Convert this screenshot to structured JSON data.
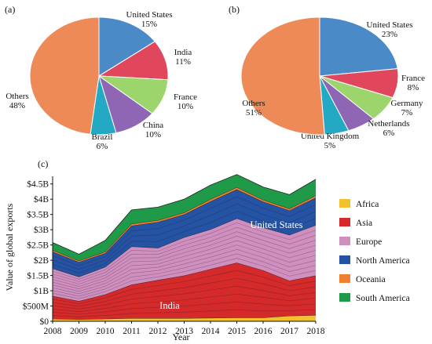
{
  "chart_data": [
    {
      "type": "pie",
      "panel_label": "(a)",
      "slices": [
        {
          "name": "United States",
          "value": 15,
          "value_label": "15%",
          "color": "#4a8ac6"
        },
        {
          "name": "India",
          "value": 11,
          "value_label": "11%",
          "color": "#e0475c"
        },
        {
          "name": "France",
          "value": 10,
          "value_label": "10%",
          "color": "#9bd56b"
        },
        {
          "name": "China",
          "value": 10,
          "value_label": "10%",
          "color": "#8e66b3"
        },
        {
          "name": "Brazil",
          "value": 6,
          "value_label": "6%",
          "color": "#23a9c4"
        },
        {
          "name": "Others",
          "value": 48,
          "value_label": "48%",
          "color": "#ee8a57"
        }
      ]
    },
    {
      "type": "pie",
      "panel_label": "(b)",
      "slices": [
        {
          "name": "United States",
          "value": 23,
          "value_label": "23%",
          "color": "#4a8ac6"
        },
        {
          "name": "France",
          "value": 8,
          "value_label": "8%",
          "color": "#e0475c"
        },
        {
          "name": "Germany",
          "value": 7,
          "value_label": "7%",
          "color": "#9bd56b"
        },
        {
          "name": "Netherlands",
          "value": 6,
          "value_label": "6%",
          "color": "#8e66b3"
        },
        {
          "name": "United Kingdom",
          "value": 5,
          "value_label": "5%",
          "color": "#23a9c4"
        },
        {
          "name": "Others",
          "value": 51,
          "value_label": "51%",
          "color": "#ee8a57"
        }
      ]
    },
    {
      "type": "area",
      "panel_label": "(c)",
      "stacked": true,
      "xlabel": "Year",
      "ylabel": "Value of global exports",
      "x": [
        2008,
        2009,
        2010,
        2011,
        2012,
        2013,
        2014,
        2015,
        2016,
        2017,
        2018
      ],
      "y_ticks": [
        {
          "value": 0,
          "label": "$0"
        },
        {
          "value": 0.5,
          "label": "$500M"
        },
        {
          "value": 1,
          "label": "$1B"
        },
        {
          "value": 1.5,
          "label": "$1.5B"
        },
        {
          "value": 2,
          "label": "$2B"
        },
        {
          "value": 2.5,
          "label": "$2.5B"
        },
        {
          "value": 3,
          "label": "$3B"
        },
        {
          "value": 3.5,
          "label": "$3.5B"
        },
        {
          "value": 4,
          "label": "$4B"
        },
        {
          "value": 4.5,
          "label": "$4.5B"
        }
      ],
      "ylim": [
        0,
        4.75
      ],
      "series": [
        {
          "name": "Africa",
          "color": "#f2c12e",
          "values": [
            0.08,
            0.06,
            0.08,
            0.1,
            0.1,
            0.1,
            0.11,
            0.12,
            0.12,
            0.18,
            0.2
          ]
        },
        {
          "name": "Asia",
          "color": "#d42a2a",
          "values": [
            0.75,
            0.6,
            0.8,
            1.1,
            1.25,
            1.4,
            1.6,
            1.8,
            1.55,
            1.15,
            1.3
          ]
        },
        {
          "name": "Europe",
          "color": "#cf8fbf",
          "values": [
            0.9,
            0.8,
            0.9,
            1.25,
            1.05,
            1.25,
            1.3,
            1.45,
            1.4,
            1.5,
            1.65
          ]
        },
        {
          "name": "North America",
          "color": "#2453a3",
          "values": [
            0.55,
            0.48,
            0.45,
            0.68,
            0.85,
            0.75,
            0.92,
            0.95,
            0.85,
            0.8,
            0.9
          ]
        },
        {
          "name": "Oceania",
          "color": "#f07f2f",
          "values": [
            0.05,
            0.04,
            0.05,
            0.06,
            0.06,
            0.06,
            0.07,
            0.07,
            0.06,
            0.06,
            0.07
          ]
        },
        {
          "name": "South America",
          "color": "#1f9a48",
          "values": [
            0.25,
            0.22,
            0.37,
            0.46,
            0.43,
            0.44,
            0.46,
            0.42,
            0.42,
            0.46,
            0.53
          ]
        }
      ],
      "annotations": [
        "United States",
        "India"
      ]
    }
  ]
}
